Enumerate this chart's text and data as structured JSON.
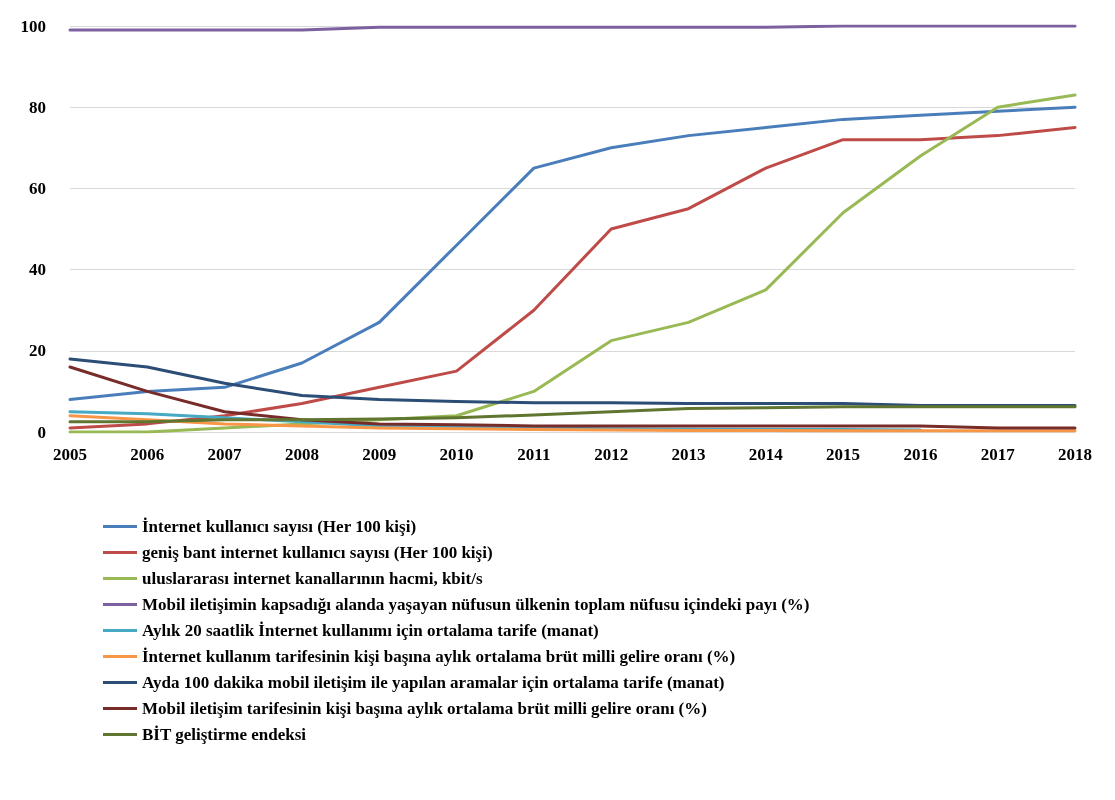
{
  "chart_data": {
    "type": "line",
    "categories": [
      "2005",
      "2006",
      "2007",
      "2008",
      "2009",
      "2010",
      "2011",
      "2012",
      "2013",
      "2014",
      "2015",
      "2016",
      "2017",
      "2018"
    ],
    "ylim": [
      0,
      100
    ],
    "yticks": [
      0,
      20,
      40,
      60,
      80,
      100
    ],
    "grid": "y",
    "legend": "bottom",
    "marker": "none",
    "line_style": "solid",
    "series": [
      {
        "name": "İnternet kullanıcı sayısı (Her 100 kişi)",
        "color": "#4a7ebb",
        "values": [
          8,
          10,
          11,
          17,
          27,
          46,
          65,
          70,
          73,
          75,
          77,
          78,
          79,
          80
        ]
      },
      {
        "name": "geniş bant internet kullanıcı sayısı (Her 100 kişi)",
        "color": "#be4b48",
        "values": [
          1,
          2,
          4,
          7,
          11,
          15,
          30,
          50,
          55,
          65,
          72,
          72,
          73,
          75
        ]
      },
      {
        "name": "uluslararası internet kanallarının hacmi, kbit/s",
        "color": "#98b954",
        "values": [
          0,
          0,
          1,
          2,
          3,
          4,
          10,
          22.5,
          27,
          35,
          54,
          68,
          80,
          83
        ]
      },
      {
        "name": "Mobil iletişimin kapsadığı alanda yaşayan nüfusun ülkenin toplam nüfusu içindeki payı (%)",
        "color": "#7d60a0",
        "values": [
          99,
          99,
          99,
          99,
          99.7,
          99.7,
          99.7,
          99.7,
          99.7,
          99.7,
          100,
          100,
          100,
          100
        ]
      },
      {
        "name": "Aylık 20 saatlik İnternet kullanımı için ortalama tarife (manat)",
        "color": "#46aac5",
        "values": [
          5,
          4.5,
          3.5,
          2.5,
          1.5,
          1.2,
          1,
          0.8,
          0.7,
          0.6,
          0.6,
          0.5,
          null,
          null
        ]
      },
      {
        "name": "İnternet kullanım tarifesinin kişi başına aylık ortalama brüt milli gelire oranı (%)",
        "color": "#f79646",
        "values": [
          4,
          3,
          2,
          1.5,
          1,
          0.8,
          0.6,
          0.5,
          0.4,
          0.4,
          0.3,
          0.3,
          0.3,
          0.3
        ]
      },
      {
        "name": "Ayda 100 dakika mobil iletişim ile yapılan aramalar için ortalama tarife (manat)",
        "color": "#2c4d75",
        "values": [
          18,
          16,
          12,
          9,
          8,
          7.5,
          7.2,
          7.2,
          7,
          7,
          7,
          6.5,
          6.5,
          6.5
        ]
      },
      {
        "name": "Mobil iletişim tarifesinin kişi başına aylık ortalama brüt milli gelire oranı (%)",
        "color": "#772c2a",
        "values": [
          16,
          10,
          5,
          3,
          2,
          1.8,
          1.5,
          1.5,
          1.5,
          1.5,
          1.5,
          1.5,
          1,
          1
        ]
      },
      {
        "name": "BİT geliştirme endeksi",
        "color": "#5f7530",
        "values": [
          2.5,
          2.5,
          3,
          3,
          3.2,
          3.5,
          4.2,
          5,
          5.8,
          6,
          6.2,
          6.2,
          6.2,
          6.2
        ]
      }
    ]
  }
}
